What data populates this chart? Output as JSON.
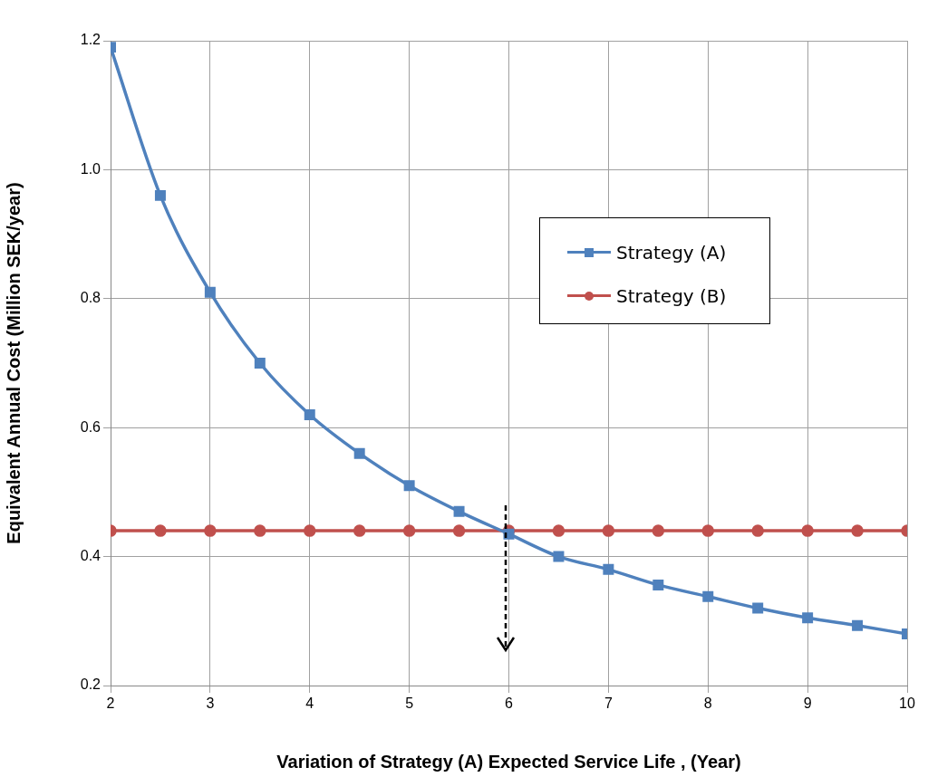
{
  "chart_data": {
    "type": "line",
    "xlabel": "Variation of Strategy (A) Expected Service Life , (Year)",
    "ylabel": "Equivalent Annual Cost (Million SEK/year)",
    "x": [
      2,
      2.5,
      3,
      3.5,
      4,
      4.5,
      5,
      5.5,
      6,
      6.5,
      7,
      7.5,
      8,
      8.5,
      9,
      9.5,
      10
    ],
    "series": [
      {
        "name": "Strategy (A)",
        "color": "#4f81bd",
        "marker": "square",
        "values": [
          1.19,
          0.96,
          0.81,
          0.7,
          0.62,
          0.56,
          0.51,
          0.47,
          0.435,
          0.4,
          0.38,
          0.356,
          0.338,
          0.32,
          0.305,
          0.293,
          0.28
        ]
      },
      {
        "name": "Strategy (B)",
        "color": "#c0504d",
        "marker": "circle",
        "values": [
          0.44,
          0.44,
          0.44,
          0.44,
          0.44,
          0.44,
          0.44,
          0.44,
          0.44,
          0.44,
          0.44,
          0.44,
          0.44,
          0.44,
          0.44,
          0.44,
          0.44
        ]
      }
    ],
    "xlim": [
      2,
      10
    ],
    "xticks": [
      2,
      3,
      4,
      5,
      6,
      7,
      8,
      9,
      10
    ],
    "ylim": [
      0.2,
      1.2
    ],
    "yticks": [
      {
        "value": 0.2,
        "label": "0.2"
      },
      {
        "value": 0.4,
        "label": "0.4"
      },
      {
        "value": 0.6,
        "label": "0.6"
      },
      {
        "value": 0.8,
        "label": "0.8"
      },
      {
        "value": 1.0,
        "label": "1.0"
      },
      {
        "value": 1.2,
        "label": "1.2"
      }
    ],
    "grid": true,
    "legend": "right",
    "line_style": "solid"
  }
}
